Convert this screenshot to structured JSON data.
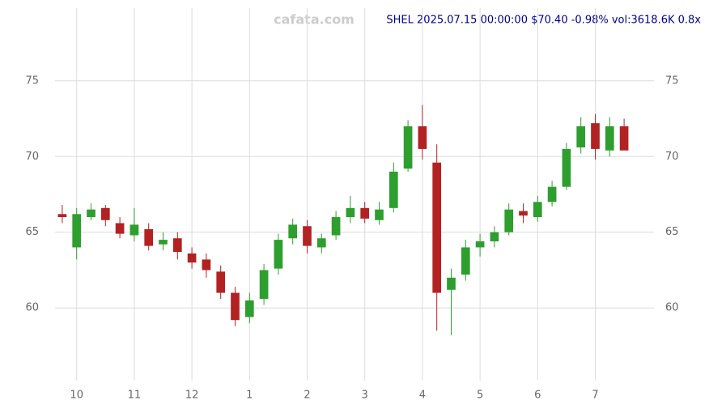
{
  "chart_data": {
    "type": "candlestick",
    "watermark": "cafata.com",
    "title": "SHEL 2025.07.15 00:00:00 $70.40 -0.98% vol:3618.6K 0.8x",
    "categories": [
      null,
      "10",
      null,
      null,
      null,
      "11",
      null,
      null,
      null,
      "12",
      null,
      null,
      null,
      "1",
      null,
      null,
      null,
      "2",
      null,
      null,
      null,
      "3",
      null,
      null,
      null,
      "4",
      null,
      null,
      null,
      "5",
      null,
      null,
      null,
      "6",
      null,
      null,
      null,
      "7",
      null,
      null
    ],
    "open": [
      66.2,
      64.0,
      66.0,
      66.6,
      65.6,
      64.8,
      65.2,
      64.2,
      64.6,
      63.6,
      63.2,
      62.4,
      61.0,
      59.4,
      60.6,
      62.6,
      64.6,
      65.4,
      64.0,
      64.8,
      66.0,
      66.6,
      65.8,
      66.6,
      69.2,
      72.0,
      69.6,
      61.2,
      62.2,
      64.0,
      64.4,
      65.0,
      66.4,
      66.0,
      67.0,
      68.0,
      70.6,
      72.2,
      70.4,
      72.0
    ],
    "high": [
      66.8,
      66.6,
      66.9,
      66.8,
      66.0,
      66.6,
      65.6,
      65.0,
      65.0,
      64.0,
      63.6,
      62.8,
      61.4,
      61.0,
      62.9,
      64.9,
      65.9,
      65.8,
      64.9,
      66.4,
      67.4,
      67.0,
      67.0,
      69.6,
      72.4,
      73.4,
      70.8,
      62.6,
      64.5,
      64.9,
      65.4,
      66.9,
      66.9,
      67.4,
      68.4,
      70.9,
      72.6,
      72.8,
      72.6,
      72.5
    ],
    "low": [
      65.6,
      63.2,
      65.8,
      65.4,
      64.6,
      64.4,
      63.8,
      63.8,
      63.2,
      62.6,
      62.0,
      60.6,
      58.8,
      59.0,
      60.2,
      62.2,
      64.2,
      63.6,
      63.6,
      64.5,
      65.6,
      65.6,
      65.5,
      66.3,
      69.0,
      69.8,
      58.5,
      58.2,
      61.8,
      63.4,
      64.0,
      64.8,
      65.6,
      65.7,
      66.7,
      67.8,
      70.2,
      69.8,
      70.0,
      70.5
    ],
    "close": [
      66.0,
      66.2,
      66.5,
      65.8,
      64.9,
      65.5,
      64.1,
      64.5,
      63.7,
      63.0,
      62.5,
      61.0,
      59.2,
      60.5,
      62.5,
      64.5,
      65.5,
      64.1,
      64.6,
      66.0,
      66.6,
      65.9,
      66.5,
      69.0,
      72.0,
      70.5,
      61.0,
      62.0,
      64.0,
      64.4,
      65.0,
      66.5,
      66.1,
      67.0,
      68.0,
      70.5,
      72.0,
      70.5,
      72.0,
      70.4
    ],
    "up_color": "#2e9e2e",
    "down_color": "#b22222",
    "ylim": [
      55.2,
      79.8
    ],
    "yticks": [
      60,
      65,
      70,
      75
    ],
    "grid": true
  }
}
